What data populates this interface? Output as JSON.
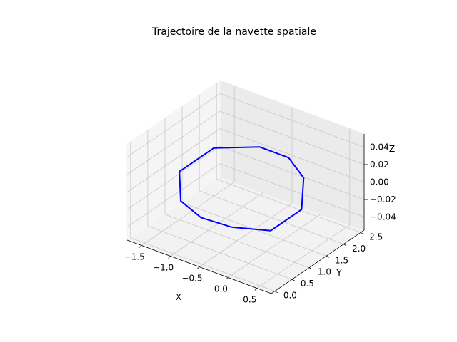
{
  "chart_data": {
    "type": "line3d",
    "title": "Trajectoire de la navette spatiale",
    "xlabel": "X",
    "ylabel": "Y",
    "zlabel": "Z",
    "xlim": [
      -1.75,
      0.75
    ],
    "ylim": [
      -0.1,
      2.6
    ],
    "zlim": [
      -0.055,
      0.055
    ],
    "xticks": [
      -1.5,
      -1.0,
      -0.5,
      0.0,
      0.5
    ],
    "xtick_labels": [
      "−1.5",
      "−1.0",
      "−0.5",
      "0.0",
      "0.5"
    ],
    "yticks": [
      0.0,
      0.5,
      1.0,
      1.5,
      2.0,
      2.5
    ],
    "ytick_labels": [
      "0.0",
      "0.5",
      "1.0",
      "1.5",
      "2.0",
      "2.5"
    ],
    "zticks": [
      -0.04,
      -0.02,
      0.0,
      0.02,
      0.04
    ],
    "ztick_labels": [
      "−0.04",
      "−0.02",
      "0.00",
      "0.02",
      "0.04"
    ],
    "grid": true,
    "series": [
      {
        "color": "#0000ff",
        "x": [
          0.0,
          0.5,
          0.5,
          0.0,
          -0.5,
          -1.0,
          -1.5,
          -1.5,
          -1.0,
          -0.5,
          0.0
        ],
        "y": [
          0.0,
          0.3,
          1.2,
          2.1,
          2.5,
          2.5,
          2.0,
          1.0,
          0.2,
          -0.05,
          0.0
        ],
        "z": [
          0,
          0,
          0,
          0,
          0,
          0,
          0,
          0,
          0,
          0,
          0
        ]
      }
    ]
  }
}
